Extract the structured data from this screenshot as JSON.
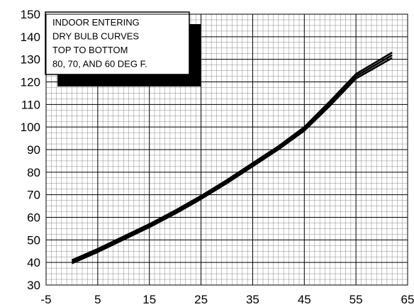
{
  "chart_data": {
    "type": "line",
    "title": "",
    "xlabel": "",
    "ylabel": "",
    "xlim": [
      -5,
      65
    ],
    "ylim": [
      30,
      150
    ],
    "x_ticks": [
      -5,
      5,
      15,
      25,
      35,
      45,
      55,
      65
    ],
    "y_ticks": [
      30,
      40,
      50,
      60,
      70,
      80,
      90,
      100,
      110,
      120,
      130,
      140,
      150
    ],
    "minor_grid": {
      "x_step": 1,
      "y_step": 2.5
    },
    "grid": true,
    "annotation_lines": [
      "INDOOR ENTERING",
      "DRY BULB CURVES",
      "TOP TO BOTTOM",
      "80, 70, AND 60 DEG F."
    ],
    "annotation_placement": "top-left",
    "series": [
      {
        "x": [
          0,
          5,
          10,
          15,
          20,
          25,
          30,
          35,
          40,
          45,
          50,
          55,
          62
        ],
        "y": [
          41,
          46,
          51.5,
          57,
          63,
          69.5,
          76.5,
          84,
          91.5,
          100,
          111.5,
          123.5,
          133
        ]
      },
      {
        "x": [
          0,
          5,
          10,
          15,
          20,
          25,
          30,
          35,
          40,
          45,
          50,
          55,
          62
        ],
        "y": [
          40.3,
          45.3,
          50.8,
          56.3,
          62.3,
          68.8,
          75.8,
          83.3,
          90.8,
          99.2,
          110.5,
          122.5,
          131.8
        ]
      },
      {
        "x": [
          0,
          5,
          10,
          15,
          20,
          25,
          30,
          35,
          40,
          45,
          50,
          55,
          62
        ],
        "y": [
          39.6,
          44.6,
          50.1,
          55.6,
          61.6,
          68.1,
          75.1,
          82.6,
          90.1,
          98.4,
          109.5,
          121.5,
          130.6
        ]
      }
    ],
    "colors": {
      "grid_major": "#000000",
      "grid_minor": "#888888",
      "line": "#000000",
      "shadow": "#000000"
    }
  }
}
